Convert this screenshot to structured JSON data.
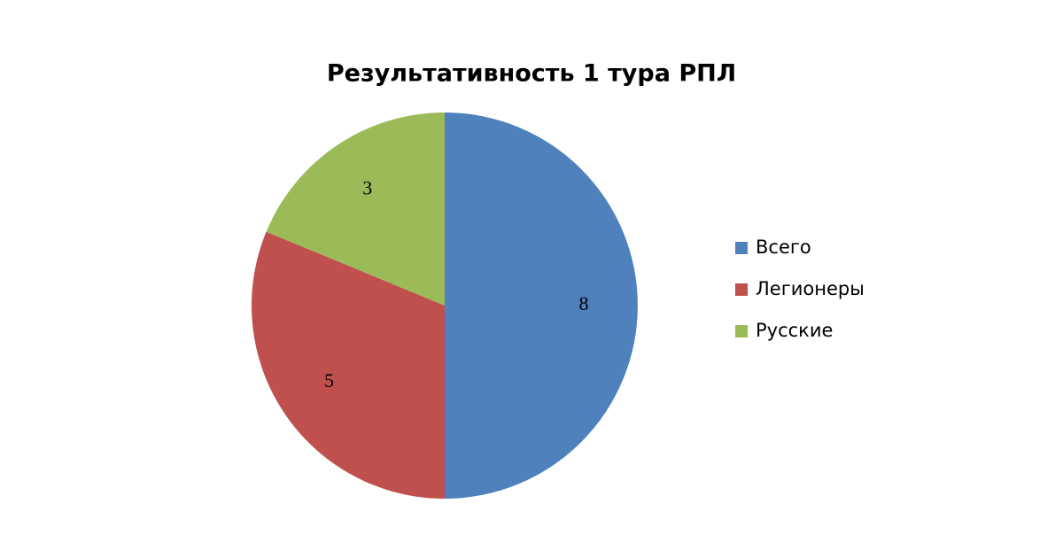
{
  "chart_data": {
    "type": "pie",
    "title": "Результативность 1 тура РПЛ",
    "categories": [
      "Всего",
      "Легионеры",
      "Русские"
    ],
    "values": [
      8,
      5,
      3
    ],
    "colors": [
      "#4f81bd",
      "#c0504d",
      "#9bbb59"
    ],
    "legend": "right"
  }
}
